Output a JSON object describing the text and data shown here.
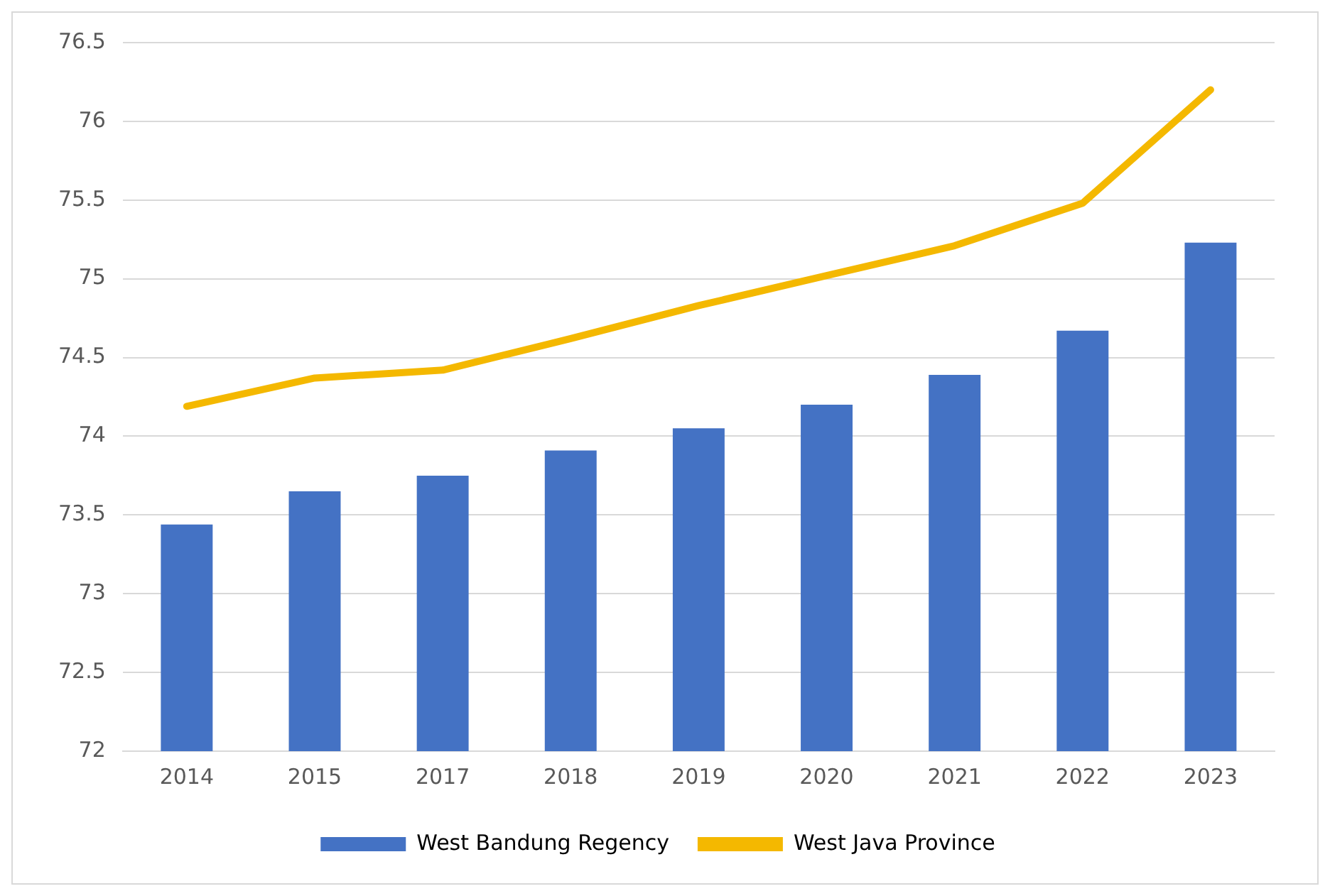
{
  "chart_data": {
    "type": "bar",
    "categories": [
      "2014",
      "2015",
      "2017",
      "2018",
      "2019",
      "2020",
      "2021",
      "2022",
      "2023"
    ],
    "series": [
      {
        "name": "West Bandung Regency",
        "color": "#4472c4",
        "values": [
          73.44,
          73.65,
          73.75,
          73.91,
          74.05,
          74.2,
          74.39,
          74.67,
          75.23
        ]
      },
      {
        "name": "West Java Province",
        "type": "line",
        "color": "#f4b800",
        "values": [
          74.19,
          74.37,
          74.42,
          74.62,
          74.83,
          75.02,
          75.21,
          75.48,
          76.2
        ]
      }
    ],
    "ylim": [
      72,
      76.5
    ],
    "yticks": [
      72,
      72.5,
      73,
      73.5,
      74,
      74.5,
      75,
      75.5,
      76,
      76.5
    ],
    "grid": "y",
    "legend": "bottom",
    "marker": "none"
  }
}
